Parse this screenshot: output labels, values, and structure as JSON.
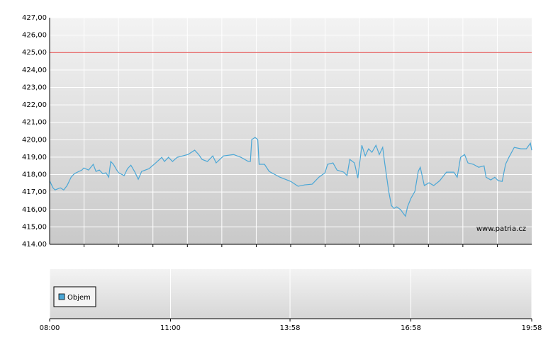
{
  "chart_data": {
    "type": "line",
    "watermark": "www.patria.cz",
    "volume_legend": "Objem",
    "x": [
      "08:00",
      "08:05",
      "08:08",
      "08:16",
      "08:21",
      "08:26",
      "08:32",
      "08:37",
      "08:48",
      "08:51",
      "08:58",
      "09:05",
      "09:09",
      "09:14",
      "09:19",
      "09:24",
      "09:28",
      "09:31",
      "09:35",
      "09:40",
      "09:43",
      "09:51",
      "09:56",
      "10:01",
      "10:07",
      "10:12",
      "10:17",
      "10:28",
      "10:38",
      "10:47",
      "10:51",
      "10:57",
      "11:03",
      "11:10",
      "11:18",
      "11:26",
      "11:36",
      "11:42",
      "11:47",
      "11:55",
      "12:03",
      "12:08",
      "12:19",
      "12:34",
      "12:45",
      "12:56",
      "12:59",
      "13:01",
      "13:06",
      "13:10",
      "13:12",
      "13:20",
      "13:27",
      "13:43",
      "13:59",
      "14:10",
      "14:20",
      "14:31",
      "14:41",
      "14:50",
      "14:54",
      "15:02",
      "15:08",
      "15:18",
      "15:23",
      "15:27",
      "15:34",
      "15:39",
      "15:45",
      "15:50",
      "15:55",
      "16:00",
      "16:06",
      "16:11",
      "16:16",
      "16:19",
      "16:25",
      "16:29",
      "16:33",
      "16:37",
      "16:43",
      "16:46",
      "16:50",
      "16:53",
      "16:58",
      "17:04",
      "17:09",
      "17:12",
      "17:18",
      "17:25",
      "17:32",
      "17:41",
      "17:51",
      "18:02",
      "18:07",
      "18:12",
      "18:18",
      "18:23",
      "18:31",
      "18:39",
      "18:47",
      "18:50",
      "18:57",
      "19:03",
      "19:08",
      "19:14",
      "19:19",
      "19:24",
      "19:32",
      "19:42",
      "19:50",
      "19:56",
      "19:58"
    ],
    "series": [
      {
        "color": "#4ba7d6",
        "values": [
          417.65,
          417.24,
          417.12,
          417.24,
          417.12,
          417.37,
          417.85,
          418.06,
          418.26,
          418.38,
          418.26,
          418.59,
          418.18,
          418.26,
          418.06,
          418.1,
          417.85,
          418.75,
          418.59,
          418.26,
          418.1,
          417.94,
          418.34,
          418.54,
          418.14,
          417.73,
          418.18,
          418.34,
          418.67,
          418.99,
          418.75,
          418.99,
          418.75,
          418.99,
          419.07,
          419.15,
          419.4,
          419.15,
          418.87,
          418.75,
          419.07,
          418.67,
          419.07,
          419.15,
          418.99,
          418.75,
          418.75,
          420.01,
          420.13,
          420.01,
          418.59,
          418.59,
          418.18,
          417.85,
          417.61,
          417.33,
          417.41,
          417.45,
          417.85,
          418.1,
          418.59,
          418.67,
          418.26,
          418.14,
          417.94,
          418.87,
          418.67,
          417.8,
          419.68,
          419.07,
          419.48,
          419.28,
          419.68,
          419.15,
          419.56,
          418.67,
          417.04,
          416.22,
          416.06,
          416.15,
          415.98,
          415.81,
          415.61,
          416.15,
          416.63,
          417.04,
          418.18,
          418.42,
          417.37,
          417.53,
          417.37,
          417.65,
          418.14,
          418.14,
          417.85,
          418.99,
          419.15,
          418.67,
          418.59,
          418.42,
          418.5,
          417.85,
          417.69,
          417.85,
          417.65,
          417.61,
          418.59,
          418.99,
          419.56,
          419.48,
          419.48,
          419.8,
          419.4
        ]
      }
    ],
    "reference_line": {
      "value": 425,
      "color": "#e03c3c"
    },
    "xlim": [
      "08:00",
      "19:58"
    ],
    "xticks": [
      "08:00",
      "11:00",
      "13:58",
      "16:58",
      "19:58"
    ],
    "ylim": [
      414,
      427
    ],
    "yticks": [
      {
        "value": 414,
        "label": "414.00"
      },
      {
        "value": 415,
        "label": "415,00"
      },
      {
        "value": 416,
        "label": "416,00"
      },
      {
        "value": 417,
        "label": "417,00"
      },
      {
        "value": 418,
        "label": "418,00"
      },
      {
        "value": 419,
        "label": "419,00"
      },
      {
        "value": 420,
        "label": "420,00"
      },
      {
        "value": 421,
        "label": "421,00"
      },
      {
        "value": 422,
        "label": "422,00"
      },
      {
        "value": 423,
        "label": "423,00"
      },
      {
        "value": 424,
        "label": "424,00"
      },
      {
        "value": 425,
        "label": "425,00"
      },
      {
        "value": 426,
        "label": "426,00"
      },
      {
        "value": 427,
        "label": "427,00"
      }
    ],
    "grid": true
  }
}
